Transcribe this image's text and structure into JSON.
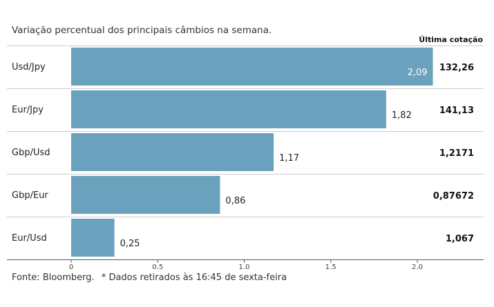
{
  "header": {
    "subtitle": "Variação percentual dos principais câmbios na semana.",
    "column_title": "Última cotação"
  },
  "footer": {
    "source": "Fonte: Bloomberg.",
    "note": "* Dados retirados às 16:45 de sexta-feira"
  },
  "colors": {
    "bar": "#6aa2be",
    "gridline": "#cccccc",
    "axis": "#555555",
    "label_inside": "#ffffff",
    "label_outside": "#222222"
  },
  "chart_data": {
    "type": "bar",
    "orientation": "horizontal",
    "categories": [
      "Usd/Jpy",
      "Eur/Jpy",
      "Gbp/Usd",
      "Gbp/Eur",
      "Eur/Usd"
    ],
    "values": [
      2.09,
      1.82,
      1.17,
      0.86,
      0.25
    ],
    "value_labels": [
      "2,09",
      "1,82",
      "1,17",
      "0,86",
      "0,25"
    ],
    "last_quote": [
      "132,26",
      "141,13",
      "1,2171",
      "0,87672",
      "1,067"
    ],
    "xlim": [
      0,
      2.35
    ],
    "xticks": [
      0,
      0.5,
      1.0,
      1.5,
      2.0
    ],
    "xtick_labels": [
      "0",
      "0,5",
      "1,0",
      "1,5",
      "2,0"
    ],
    "grid": "horizontal separators"
  }
}
